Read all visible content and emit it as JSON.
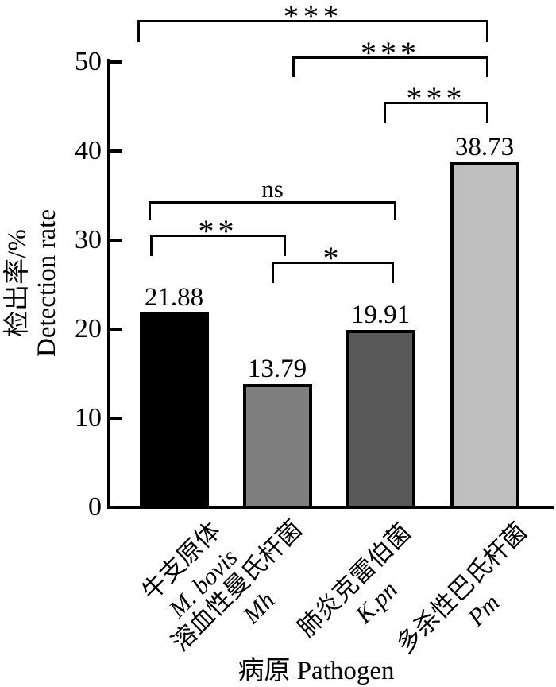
{
  "chart_data": {
    "type": "bar",
    "title": "",
    "xlabel": "病原 Pathogen",
    "ylabel_lines": [
      "检出率/%",
      "Detection rate"
    ],
    "ylim": [
      0,
      50
    ],
    "yticks": [
      0,
      10,
      20,
      30,
      40,
      50
    ],
    "grid": false,
    "legend": "none",
    "categories": [
      {
        "name_cn": "牛支原体",
        "name_latin": "M. bovis"
      },
      {
        "name_cn": "溶血性曼氏杆菌",
        "name_latin": "Mh"
      },
      {
        "name_cn": "肺炎克雷伯菌",
        "name_latin": "K.pn"
      },
      {
        "name_cn": "多杀性巴氏杆菌",
        "name_latin": "Pm"
      }
    ],
    "values": [
      21.88,
      13.79,
      19.91,
      38.73
    ],
    "value_labels": [
      "21.88",
      "13.79",
      "19.91",
      "38.73"
    ],
    "bar_colors": [
      "#000000",
      "#7f7f7f",
      "#595959",
      "#bfbfbf"
    ],
    "significance_brackets": [
      {
        "label": "***",
        "between": [
          "M. bovis",
          "Pm"
        ]
      },
      {
        "label": "***",
        "between": [
          "Mh",
          "Pm"
        ]
      },
      {
        "label": "***",
        "between": [
          "K.pn",
          "Pm"
        ]
      },
      {
        "label": "ns",
        "between": [
          "M. bovis",
          "K.pn"
        ]
      },
      {
        "label": "**",
        "between": [
          "M. bovis",
          "Mh"
        ]
      },
      {
        "label": "*",
        "between": [
          "Mh",
          "K.pn"
        ]
      }
    ]
  },
  "colors": {
    "axis": "#000000",
    "text": "#000000",
    "background": "#ffffff"
  }
}
